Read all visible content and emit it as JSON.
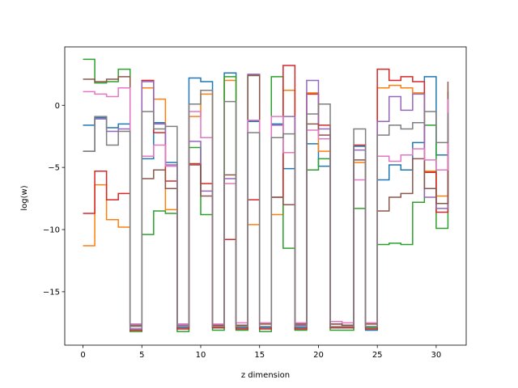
{
  "chart_data": {
    "type": "line",
    "step": "post",
    "title": "",
    "xlabel": "z dimension",
    "ylabel": "log(w)",
    "xlim": [
      -1.55,
      32.55
    ],
    "ylim": [
      -19.3,
      4.7
    ],
    "xticks": [
      0,
      5,
      10,
      15,
      20,
      25,
      30
    ],
    "yticks": [
      0,
      -5,
      -10,
      -15
    ],
    "grid": false,
    "x": [
      0,
      1,
      2,
      3,
      4,
      5,
      6,
      7,
      8,
      9,
      10,
      11,
      12,
      13,
      14,
      15,
      16,
      17,
      18,
      19,
      20,
      21,
      22,
      23,
      24,
      25,
      26,
      27,
      28,
      29,
      30,
      31
    ],
    "series": [
      {
        "color": "#1f77b4",
        "values": [
          -1.6,
          -1.0,
          -1.8,
          -1.5,
          -17.6,
          -4.3,
          -1.4,
          -4.6,
          -17.9,
          2.2,
          1.9,
          -17.9,
          2.6,
          -17.9,
          -1.3,
          -17.9,
          -1.5,
          -5.1,
          -17.9,
          -3.1,
          -4.9,
          -17.9,
          -17.9,
          -3.3,
          -18.1,
          -6.0,
          -4.8,
          -5.2,
          -3.0,
          2.3,
          -4.0,
          -2.0
        ]
      },
      {
        "color": "#ff7f0e",
        "values": [
          -11.3,
          -6.4,
          -9.2,
          -9.8,
          -18.0,
          1.4,
          0.5,
          -8.4,
          -17.8,
          -0.9,
          0.9,
          -17.8,
          2.0,
          -17.8,
          -9.6,
          -17.6,
          -8.8,
          1.2,
          -17.6,
          1.0,
          -3.7,
          -17.6,
          -17.7,
          -4.6,
          -17.6,
          1.4,
          1.6,
          1.4,
          1.0,
          -5.3,
          -7.3,
          -3.0
        ]
      },
      {
        "color": "#2ca02c",
        "values": [
          3.7,
          1.8,
          1.9,
          2.9,
          -18.2,
          -10.4,
          -8.5,
          -8.7,
          -18.2,
          -3.4,
          -8.8,
          -18.1,
          2.3,
          -18.1,
          2.4,
          -18.2,
          2.3,
          -11.5,
          -18.1,
          -5.2,
          -4.3,
          -18.1,
          -18.1,
          -8.3,
          -17.9,
          -11.2,
          -11.1,
          -11.2,
          -7.8,
          -1.6,
          -9.9,
          1.1
        ]
      },
      {
        "color": "#d62728",
        "values": [
          -8.7,
          -5.3,
          -7.6,
          -7.1,
          -18.1,
          2.0,
          -2.2,
          -6.1,
          -18.0,
          -4.7,
          -6.3,
          -17.9,
          -10.8,
          -18.0,
          -7.6,
          -18.0,
          -7.4,
          3.2,
          -18.0,
          0.9,
          -1.6,
          -17.9,
          -17.9,
          -3.2,
          -18.0,
          2.9,
          2.0,
          2.3,
          1.9,
          -5.4,
          -8.6,
          -1.5
        ]
      },
      {
        "color": "#9467bd",
        "values": [
          -3.7,
          -1.1,
          -2.1,
          -1.9,
          -18.0,
          1.9,
          -1.5,
          -4.8,
          -17.7,
          -2.9,
          -6.9,
          -17.7,
          -5.9,
          -17.7,
          2.5,
          -17.8,
          -1.6,
          -0.9,
          -17.7,
          2.0,
          -1.9,
          -17.6,
          -17.7,
          -3.6,
          -17.8,
          -1.3,
          0.7,
          -0.4,
          0.9,
          -7.4,
          -8.3,
          0.4
        ]
      },
      {
        "color": "#8c564b",
        "values": [
          2.1,
          1.9,
          2.1,
          2.3,
          -17.7,
          -5.9,
          -5.2,
          -6.7,
          -17.6,
          -4.8,
          -7.3,
          -17.7,
          -5.6,
          -17.7,
          2.4,
          -17.6,
          -7.4,
          -8.0,
          -17.6,
          -1.5,
          -2.4,
          -17.6,
          -17.7,
          -4.4,
          -17.6,
          -8.5,
          -7.4,
          -7.1,
          -4.3,
          -6.7,
          -7.9,
          1.9
        ]
      },
      {
        "color": "#e377c2",
        "values": [
          1.1,
          0.9,
          0.7,
          1.4,
          -17.6,
          -4.1,
          -3.2,
          -4.9,
          -17.6,
          -0.5,
          -2.6,
          -17.6,
          -6.3,
          -17.5,
          -1.2,
          -17.5,
          -0.9,
          -3.8,
          -17.5,
          -2.0,
          -2.7,
          -17.4,
          -17.5,
          -6.0,
          -17.5,
          -4.1,
          -4.5,
          -4.0,
          -3.5,
          -4.4,
          -5.2,
          0.5
        ]
      },
      {
        "color": "#7f7f7f",
        "values": [
          -3.7,
          -0.9,
          -3.2,
          -2.1,
          -17.8,
          -0.5,
          -1.9,
          -1.7,
          -17.8,
          0.1,
          1.2,
          -17.8,
          0.3,
          -17.8,
          -2.2,
          -17.8,
          -2.6,
          -2.3,
          -17.8,
          -0.7,
          0.1,
          -17.8,
          -17.8,
          -1.9,
          -17.8,
          -2.4,
          -1.6,
          -1.9,
          -1.4,
          -0.5,
          -3.0,
          -0.6
        ]
      }
    ]
  }
}
